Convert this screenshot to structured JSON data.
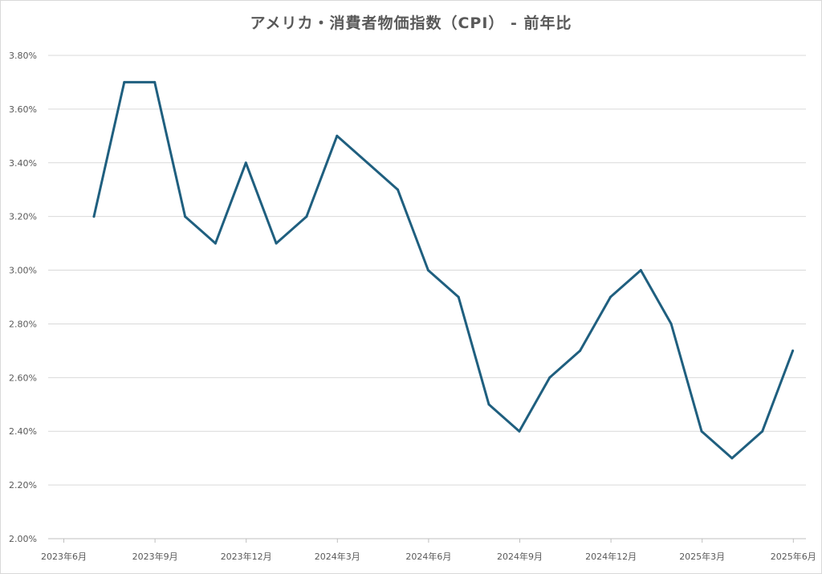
{
  "chart_data": {
    "type": "line",
    "title": "アメリカ・消費者物価指数（CPI） - 前年比",
    "xlabel": "",
    "ylabel": "",
    "ylim": [
      0.02,
      0.038
    ],
    "y_ticks": [
      0.02,
      0.022,
      0.024,
      0.026,
      0.028,
      0.03,
      0.032,
      0.034,
      0.036,
      0.038
    ],
    "y_tick_labels": [
      "2.00%",
      "2.20%",
      "2.40%",
      "2.60%",
      "2.80%",
      "3.00%",
      "3.20%",
      "3.40%",
      "3.60%",
      "3.80%"
    ],
    "x_tick_labels": [
      "2023年6月",
      "2023年9月",
      "2023年12月",
      "2024年3月",
      "2024年6月",
      "2024年9月",
      "2024年12月",
      "2025年3月",
      "2025年6月"
    ],
    "x": [
      "2023-07",
      "2023-08",
      "2023-09",
      "2023-10",
      "2023-11",
      "2023-12",
      "2024-01",
      "2024-02",
      "2024-03",
      "2024-04",
      "2024-05",
      "2024-06",
      "2024-07",
      "2024-08",
      "2024-09",
      "2024-10",
      "2024-11",
      "2024-12",
      "2025-01",
      "2025-02",
      "2025-03",
      "2025-04",
      "2025-05",
      "2025-06"
    ],
    "series": [
      {
        "values": [
          0.032,
          0.037,
          0.037,
          0.032,
          0.031,
          0.034,
          0.031,
          0.032,
          0.035,
          0.034,
          0.033,
          0.03,
          0.029,
          0.025,
          0.024,
          0.026,
          0.027,
          0.029,
          0.03,
          0.028,
          0.024,
          0.023,
          0.024,
          0.027
        ],
        "color": "#1f5f7f"
      }
    ],
    "grid": true,
    "legend": "none"
  }
}
